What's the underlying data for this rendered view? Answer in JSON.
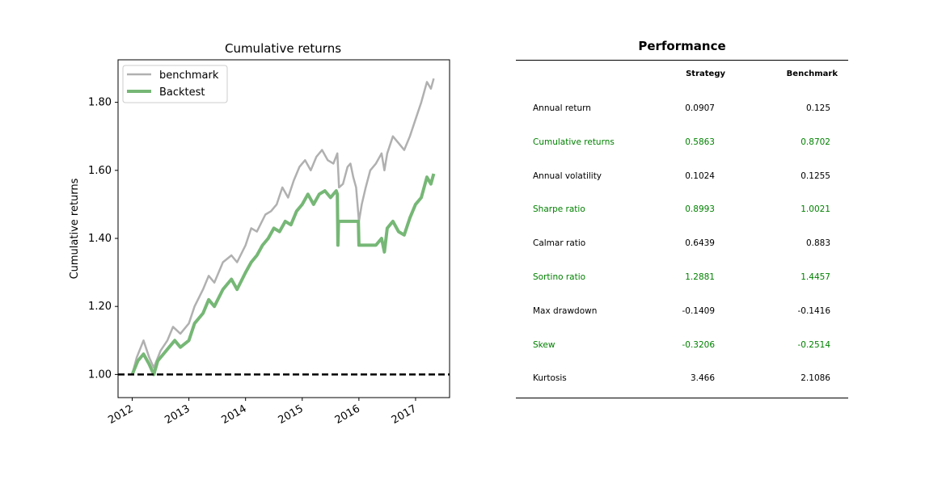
{
  "chart_data": {
    "type": "line",
    "title": "Cumulative returns",
    "ylabel": "Cumulative returns",
    "xlabel": "",
    "xlim": [
      2011.75,
      2017.6
    ],
    "ylim": [
      0.932,
      1.925
    ],
    "yticks": [
      1.0,
      1.2,
      1.4,
      1.6,
      1.8
    ],
    "ytick_labels": [
      "1.00",
      "1.20",
      "1.40",
      "1.60",
      "1.80"
    ],
    "xticks": [
      2012,
      2013,
      2014,
      2015,
      2016,
      2017
    ],
    "xtick_labels": [
      "2012",
      "2013",
      "2014",
      "2015",
      "2016",
      "2017"
    ],
    "reference_line": 1.0,
    "legend_position": "upper-left",
    "series": [
      {
        "name": "benchmark",
        "color": "#b0b0b0",
        "points": [
          [
            2012.0,
            1.0
          ],
          [
            2012.08,
            1.05
          ],
          [
            2012.2,
            1.1
          ],
          [
            2012.3,
            1.05
          ],
          [
            2012.38,
            1.02
          ],
          [
            2012.5,
            1.07
          ],
          [
            2012.62,
            1.1
          ],
          [
            2012.72,
            1.14
          ],
          [
            2012.85,
            1.12
          ],
          [
            2013.0,
            1.15
          ],
          [
            2013.1,
            1.2
          ],
          [
            2013.25,
            1.25
          ],
          [
            2013.35,
            1.29
          ],
          [
            2013.45,
            1.27
          ],
          [
            2013.6,
            1.33
          ],
          [
            2013.75,
            1.35
          ],
          [
            2013.85,
            1.33
          ],
          [
            2014.0,
            1.38
          ],
          [
            2014.1,
            1.43
          ],
          [
            2014.2,
            1.42
          ],
          [
            2014.35,
            1.47
          ],
          [
            2014.45,
            1.48
          ],
          [
            2014.55,
            1.5
          ],
          [
            2014.65,
            1.55
          ],
          [
            2014.75,
            1.52
          ],
          [
            2014.85,
            1.57
          ],
          [
            2014.95,
            1.61
          ],
          [
            2015.05,
            1.63
          ],
          [
            2015.15,
            1.6
          ],
          [
            2015.25,
            1.64
          ],
          [
            2015.35,
            1.66
          ],
          [
            2015.45,
            1.63
          ],
          [
            2015.55,
            1.62
          ],
          [
            2015.62,
            1.65
          ],
          [
            2015.65,
            1.55
          ],
          [
            2015.72,
            1.56
          ],
          [
            2015.8,
            1.61
          ],
          [
            2015.85,
            1.62
          ],
          [
            2015.9,
            1.58
          ],
          [
            2015.95,
            1.55
          ],
          [
            2016.0,
            1.45
          ],
          [
            2016.05,
            1.5
          ],
          [
            2016.12,
            1.55
          ],
          [
            2016.2,
            1.6
          ],
          [
            2016.3,
            1.62
          ],
          [
            2016.4,
            1.65
          ],
          [
            2016.45,
            1.6
          ],
          [
            2016.5,
            1.65
          ],
          [
            2016.6,
            1.7
          ],
          [
            2016.7,
            1.68
          ],
          [
            2016.8,
            1.66
          ],
          [
            2016.9,
            1.7
          ],
          [
            2017.0,
            1.75
          ],
          [
            2017.1,
            1.8
          ],
          [
            2017.15,
            1.83
          ],
          [
            2017.2,
            1.86
          ],
          [
            2017.27,
            1.84
          ],
          [
            2017.32,
            1.87
          ]
        ]
      },
      {
        "name": "Backtest",
        "color": "#76b776",
        "points": [
          [
            2012.0,
            1.0
          ],
          [
            2012.1,
            1.04
          ],
          [
            2012.2,
            1.06
          ],
          [
            2012.3,
            1.03
          ],
          [
            2012.38,
            1.0
          ],
          [
            2012.45,
            1.04
          ],
          [
            2012.55,
            1.06
          ],
          [
            2012.65,
            1.08
          ],
          [
            2012.75,
            1.1
          ],
          [
            2012.85,
            1.08
          ],
          [
            2013.0,
            1.1
          ],
          [
            2013.1,
            1.15
          ],
          [
            2013.25,
            1.18
          ],
          [
            2013.35,
            1.22
          ],
          [
            2013.45,
            1.2
          ],
          [
            2013.6,
            1.25
          ],
          [
            2013.75,
            1.28
          ],
          [
            2013.85,
            1.25
          ],
          [
            2014.0,
            1.3
          ],
          [
            2014.1,
            1.33
          ],
          [
            2014.2,
            1.35
          ],
          [
            2014.3,
            1.38
          ],
          [
            2014.4,
            1.4
          ],
          [
            2014.5,
            1.43
          ],
          [
            2014.6,
            1.42
          ],
          [
            2014.7,
            1.45
          ],
          [
            2014.8,
            1.44
          ],
          [
            2014.9,
            1.48
          ],
          [
            2015.0,
            1.5
          ],
          [
            2015.1,
            1.53
          ],
          [
            2015.2,
            1.5
          ],
          [
            2015.3,
            1.53
          ],
          [
            2015.4,
            1.54
          ],
          [
            2015.5,
            1.52
          ],
          [
            2015.6,
            1.54
          ],
          [
            2015.62,
            1.53
          ],
          [
            2015.63,
            1.38
          ],
          [
            2015.64,
            1.45
          ],
          [
            2015.99,
            1.45
          ],
          [
            2016.0,
            1.38
          ],
          [
            2016.3,
            1.38
          ],
          [
            2016.4,
            1.4
          ],
          [
            2016.45,
            1.36
          ],
          [
            2016.5,
            1.43
          ],
          [
            2016.6,
            1.45
          ],
          [
            2016.7,
            1.42
          ],
          [
            2016.8,
            1.41
          ],
          [
            2016.9,
            1.46
          ],
          [
            2017.0,
            1.5
          ],
          [
            2017.1,
            1.52
          ],
          [
            2017.15,
            1.55
          ],
          [
            2017.2,
            1.58
          ],
          [
            2017.27,
            1.56
          ],
          [
            2017.32,
            1.59
          ]
        ]
      }
    ]
  },
  "performance": {
    "title": "Performance",
    "columns": [
      "Strategy",
      "Benchmark"
    ],
    "rows": [
      {
        "label": "Annual return",
        "strategy": "0.0907",
        "benchmark": "0.125"
      },
      {
        "label": "Cumulative returns",
        "strategy": "0.5863",
        "benchmark": "0.8702"
      },
      {
        "label": "Annual volatility",
        "strategy": "0.1024",
        "benchmark": "0.1255"
      },
      {
        "label": "Sharpe ratio",
        "strategy": "0.8993",
        "benchmark": "1.0021"
      },
      {
        "label": "Calmar ratio",
        "strategy": "0.6439",
        "benchmark": "0.883"
      },
      {
        "label": "Sortino ratio",
        "strategy": "1.2881",
        "benchmark": "1.4457"
      },
      {
        "label": "Max drawdown",
        "strategy": "-0.1409",
        "benchmark": "-0.1416"
      },
      {
        "label": "Skew",
        "strategy": "-0.3206",
        "benchmark": "-0.2514"
      },
      {
        "label": "Kurtosis",
        "strategy": "3.466",
        "benchmark": "2.1086"
      }
    ],
    "alt_row_color": "#008000"
  }
}
